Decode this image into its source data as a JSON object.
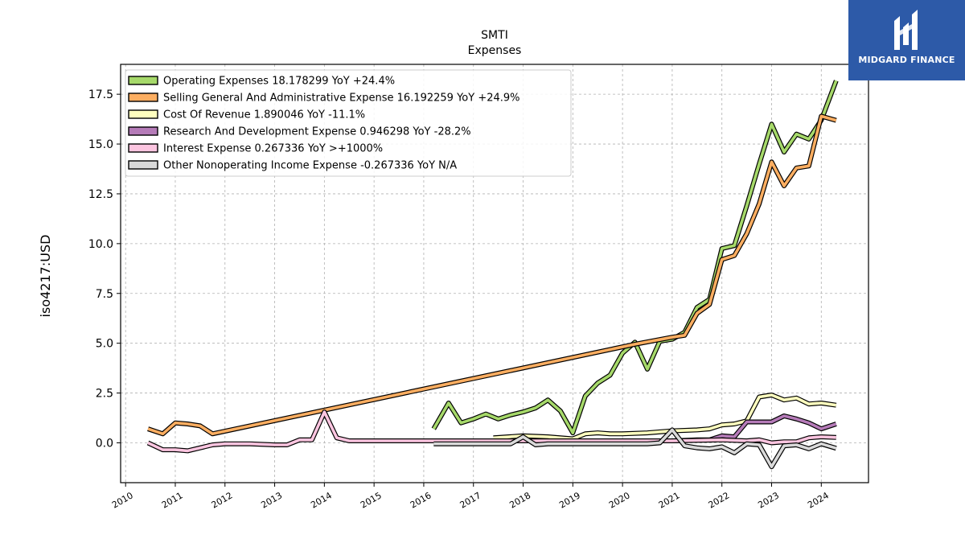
{
  "brand": {
    "name": "MIDGARD FINANCE",
    "logo_icon": "midgard-logo-icon",
    "background_color": "#2d5aa8"
  },
  "chart_data": {
    "type": "line",
    "title": "SMTI",
    "subtitle": "Expenses",
    "ylabel": "iso4217:USD",
    "xlabel": "",
    "xlim": [
      2009.9,
      2024.95
    ],
    "ylim": [
      -2.0,
      19.0
    ],
    "grid": true,
    "legend_position": "top-left",
    "x_ticks": [
      2010,
      2011,
      2012,
      2013,
      2014,
      2015,
      2016,
      2017,
      2018,
      2019,
      2020,
      2021,
      2022,
      2023,
      2024
    ],
    "x_tick_labels": [
      "2010",
      "2011",
      "2012",
      "2013",
      "2014",
      "2015",
      "2016",
      "2017",
      "2018",
      "2019",
      "2020",
      "2021",
      "2022",
      "2023",
      "2024"
    ],
    "y_ticks": [
      0.0,
      2.5,
      5.0,
      7.5,
      10.0,
      12.5,
      15.0,
      17.5
    ],
    "y_tick_labels": [
      "0.0",
      "2.5",
      "5.0",
      "7.5",
      "10.0",
      "12.5",
      "15.0",
      "17.5"
    ],
    "series": [
      {
        "name": "Operating Expenses",
        "legend_text": "Operating Expenses  18.178299 YoY +24.4%",
        "color": "#a6d96a",
        "points": [
          [
            2016.2,
            0.7
          ],
          [
            2016.5,
            2.0
          ],
          [
            2016.75,
            1.0
          ],
          [
            2017.0,
            1.2
          ],
          [
            2017.25,
            1.45
          ],
          [
            2017.5,
            1.2
          ],
          [
            2017.75,
            1.4
          ],
          [
            2018.0,
            1.55
          ],
          [
            2018.25,
            1.75
          ],
          [
            2018.5,
            2.15
          ],
          [
            2018.75,
            1.6
          ],
          [
            2019.0,
            0.5
          ],
          [
            2019.25,
            2.35
          ],
          [
            2019.5,
            3.0
          ],
          [
            2019.75,
            3.4
          ],
          [
            2020.0,
            4.5
          ],
          [
            2020.25,
            5.05
          ],
          [
            2020.5,
            3.7
          ],
          [
            2020.75,
            5.1
          ],
          [
            2021.0,
            5.2
          ],
          [
            2021.25,
            5.55
          ],
          [
            2021.5,
            6.8
          ],
          [
            2021.75,
            7.2
          ],
          [
            2022.0,
            9.75
          ],
          [
            2022.25,
            9.9
          ],
          [
            2022.5,
            11.9
          ],
          [
            2022.75,
            14.0
          ],
          [
            2023.0,
            16.0
          ],
          [
            2023.25,
            14.6
          ],
          [
            2023.5,
            15.5
          ],
          [
            2023.75,
            15.25
          ],
          [
            2024.0,
            16.2
          ],
          [
            2024.3,
            18.18
          ]
        ]
      },
      {
        "name": "Selling General And Administrative Expense",
        "legend_text": "Selling General And Administrative Expense  16.192259 YoY +24.9%",
        "color": "#fdae61",
        "points": [
          [
            2010.45,
            0.7
          ],
          [
            2010.75,
            0.45
          ],
          [
            2011.0,
            1.0
          ],
          [
            2011.25,
            0.95
          ],
          [
            2011.5,
            0.85
          ],
          [
            2011.75,
            0.45
          ],
          [
            2020.25,
            4.95
          ],
          [
            2021.0,
            5.3
          ],
          [
            2021.25,
            5.4
          ],
          [
            2021.5,
            6.5
          ],
          [
            2021.75,
            6.95
          ],
          [
            2022.0,
            9.2
          ],
          [
            2022.25,
            9.4
          ],
          [
            2022.5,
            10.5
          ],
          [
            2022.75,
            12.0
          ],
          [
            2023.0,
            14.1
          ],
          [
            2023.25,
            12.9
          ],
          [
            2023.5,
            13.8
          ],
          [
            2023.75,
            13.9
          ],
          [
            2024.0,
            16.4
          ],
          [
            2024.3,
            16.19
          ]
        ]
      },
      {
        "name": "Cost Of Revenue",
        "legend_text": "Cost Of Revenue  1.890046 YoY -11.1%",
        "color": "#ffffbf",
        "points": [
          [
            2017.4,
            0.25
          ],
          [
            2018.0,
            0.35
          ],
          [
            2018.5,
            0.3
          ],
          [
            2019.0,
            0.2
          ],
          [
            2019.25,
            0.45
          ],
          [
            2019.5,
            0.5
          ],
          [
            2019.75,
            0.45
          ],
          [
            2020.0,
            0.45
          ],
          [
            2020.5,
            0.5
          ],
          [
            2021.0,
            0.6
          ],
          [
            2021.5,
            0.65
          ],
          [
            2021.75,
            0.7
          ],
          [
            2022.0,
            0.9
          ],
          [
            2022.25,
            0.95
          ],
          [
            2022.5,
            1.1
          ],
          [
            2022.75,
            2.3
          ],
          [
            2023.0,
            2.4
          ],
          [
            2023.25,
            2.15
          ],
          [
            2023.5,
            2.25
          ],
          [
            2023.75,
            1.95
          ],
          [
            2024.0,
            2.0
          ],
          [
            2024.3,
            1.89
          ]
        ]
      },
      {
        "name": "Research And Development Expense",
        "legend_text": "Research And Development Expense  0.946298 YoY -28.2%",
        "color": "#b57bb8",
        "points": [
          [
            2020.5,
            0.1
          ],
          [
            2021.0,
            0.1
          ],
          [
            2021.5,
            0.15
          ],
          [
            2021.75,
            0.15
          ],
          [
            2022.0,
            0.35
          ],
          [
            2022.25,
            0.3
          ],
          [
            2022.5,
            1.05
          ],
          [
            2022.75,
            1.05
          ],
          [
            2023.0,
            1.05
          ],
          [
            2023.25,
            1.35
          ],
          [
            2023.5,
            1.2
          ],
          [
            2023.75,
            1.0
          ],
          [
            2024.0,
            0.7
          ],
          [
            2024.3,
            0.95
          ]
        ]
      },
      {
        "name": "Interest Expense",
        "legend_text": "Interest Expense  0.267336 YoY >+1000%",
        "color": "#fcc5e0",
        "points": [
          [
            2010.45,
            0.0
          ],
          [
            2010.75,
            -0.35
          ],
          [
            2011.0,
            -0.35
          ],
          [
            2011.25,
            -0.4
          ],
          [
            2011.5,
            -0.25
          ],
          [
            2011.75,
            -0.1
          ],
          [
            2012.0,
            -0.05
          ],
          [
            2012.5,
            -0.05
          ],
          [
            2013.0,
            -0.1
          ],
          [
            2013.25,
            -0.1
          ],
          [
            2013.5,
            0.15
          ],
          [
            2013.75,
            0.15
          ],
          [
            2014.0,
            1.55
          ],
          [
            2014.25,
            0.25
          ],
          [
            2014.5,
            0.1
          ],
          [
            2015.0,
            0.1
          ],
          [
            2016.0,
            0.1
          ],
          [
            2017.0,
            0.1
          ],
          [
            2018.0,
            0.1
          ],
          [
            2019.0,
            0.1
          ],
          [
            2020.0,
            0.1
          ],
          [
            2021.0,
            0.1
          ],
          [
            2022.0,
            0.15
          ],
          [
            2022.5,
            0.1
          ],
          [
            2022.75,
            0.15
          ],
          [
            2023.0,
            0.0
          ],
          [
            2023.25,
            0.05
          ],
          [
            2023.5,
            0.05
          ],
          [
            2023.75,
            0.25
          ],
          [
            2024.0,
            0.3
          ],
          [
            2024.3,
            0.27
          ]
        ]
      },
      {
        "name": "Other Nonoperating Income Expense",
        "legend_text": "Other Nonoperating Income Expense  -0.267336 YoY N/A",
        "color": "#d9d9d9",
        "points": [
          [
            2016.2,
            -0.05
          ],
          [
            2016.5,
            -0.05
          ],
          [
            2017.0,
            -0.05
          ],
          [
            2017.5,
            -0.05
          ],
          [
            2017.75,
            -0.05
          ],
          [
            2018.0,
            0.3
          ],
          [
            2018.25,
            -0.1
          ],
          [
            2018.5,
            -0.05
          ],
          [
            2019.0,
            -0.05
          ],
          [
            2019.5,
            -0.05
          ],
          [
            2020.0,
            -0.05
          ],
          [
            2020.5,
            -0.05
          ],
          [
            2020.75,
            0.0
          ],
          [
            2021.0,
            0.65
          ],
          [
            2021.25,
            -0.15
          ],
          [
            2021.5,
            -0.25
          ],
          [
            2021.75,
            -0.3
          ],
          [
            2022.0,
            -0.2
          ],
          [
            2022.25,
            -0.5
          ],
          [
            2022.5,
            -0.05
          ],
          [
            2022.75,
            -0.1
          ],
          [
            2023.0,
            -1.2
          ],
          [
            2023.25,
            -0.15
          ],
          [
            2023.5,
            -0.1
          ],
          [
            2023.75,
            -0.3
          ],
          [
            2024.0,
            -0.05
          ],
          [
            2024.3,
            -0.27
          ]
        ]
      }
    ]
  }
}
